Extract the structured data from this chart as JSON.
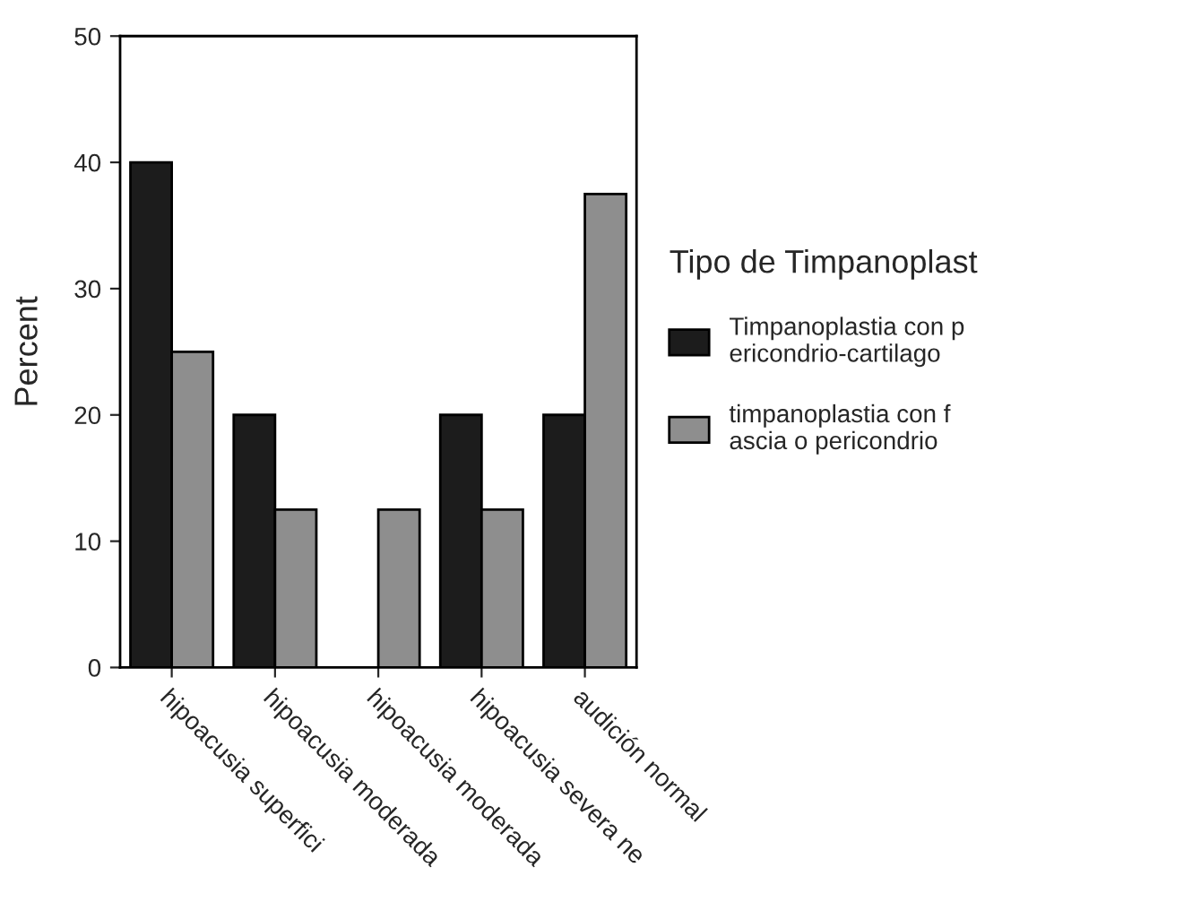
{
  "chart_data": {
    "type": "bar",
    "ylabel": "Percent",
    "legend_title": "Tipo de Timpanoplast",
    "categories": [
      "hipoacusia superfici",
      "hipoacusia moderada",
      "hipoacusia moderada",
      "hipoacusia severa ne",
      "audición normal"
    ],
    "series": [
      {
        "name": "Timpanoplastia con p\nericondrio-cartilago",
        "color": "#1c1c1c",
        "values": [
          40,
          20,
          null,
          20,
          20
        ]
      },
      {
        "name": "timpanoplastia con f\nascia o pericondrio",
        "color": "#8e8e8e",
        "values": [
          25,
          12.5,
          12.5,
          12.5,
          37.5
        ]
      }
    ],
    "ylim": [
      0,
      50
    ],
    "yticks": [
      0,
      10,
      20,
      30,
      40,
      50
    ],
    "grid": false,
    "legend": "right"
  }
}
